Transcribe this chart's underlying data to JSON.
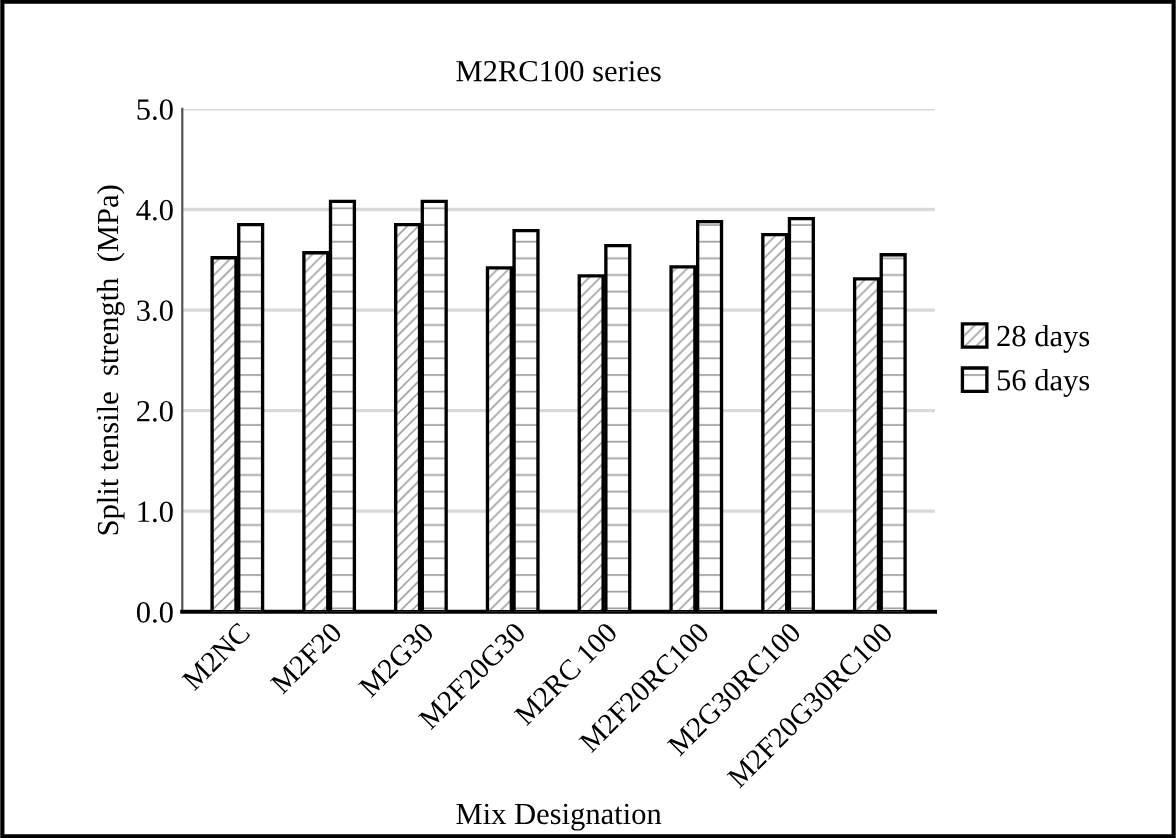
{
  "chart_data": {
    "type": "bar",
    "title": "M2RC100 series",
    "xlabel": "Mix Designation",
    "ylabel": "Split tensile  strength  (MPa)",
    "categories": [
      "M2NC",
      "M2F20",
      "M2G30",
      "M2F20G30",
      "M2RC 100",
      "M2F20RC100",
      "M2G30RC100",
      "M2F20G30RC100"
    ],
    "series": [
      {
        "name": "28 days",
        "color": "#000000",
        "values": [
          3.52,
          3.57,
          3.85,
          3.42,
          3.34,
          3.43,
          3.75,
          3.31
        ]
      },
      {
        "name": "56 days",
        "color": "#000000",
        "values": [
          3.85,
          4.08,
          4.08,
          3.79,
          3.64,
          3.88,
          3.91,
          3.55
        ]
      }
    ],
    "ylim": [
      0,
      5
    ],
    "yticks": [
      {
        "value": 0,
        "label": "0.0"
      },
      {
        "value": 1,
        "label": "1.0"
      },
      {
        "value": 2,
        "label": "2.0"
      },
      {
        "value": 3,
        "label": "3.0"
      },
      {
        "value": 4,
        "label": "4.0"
      },
      {
        "value": 5,
        "label": "5.0"
      }
    ],
    "grid": "y",
    "legend": "right"
  }
}
